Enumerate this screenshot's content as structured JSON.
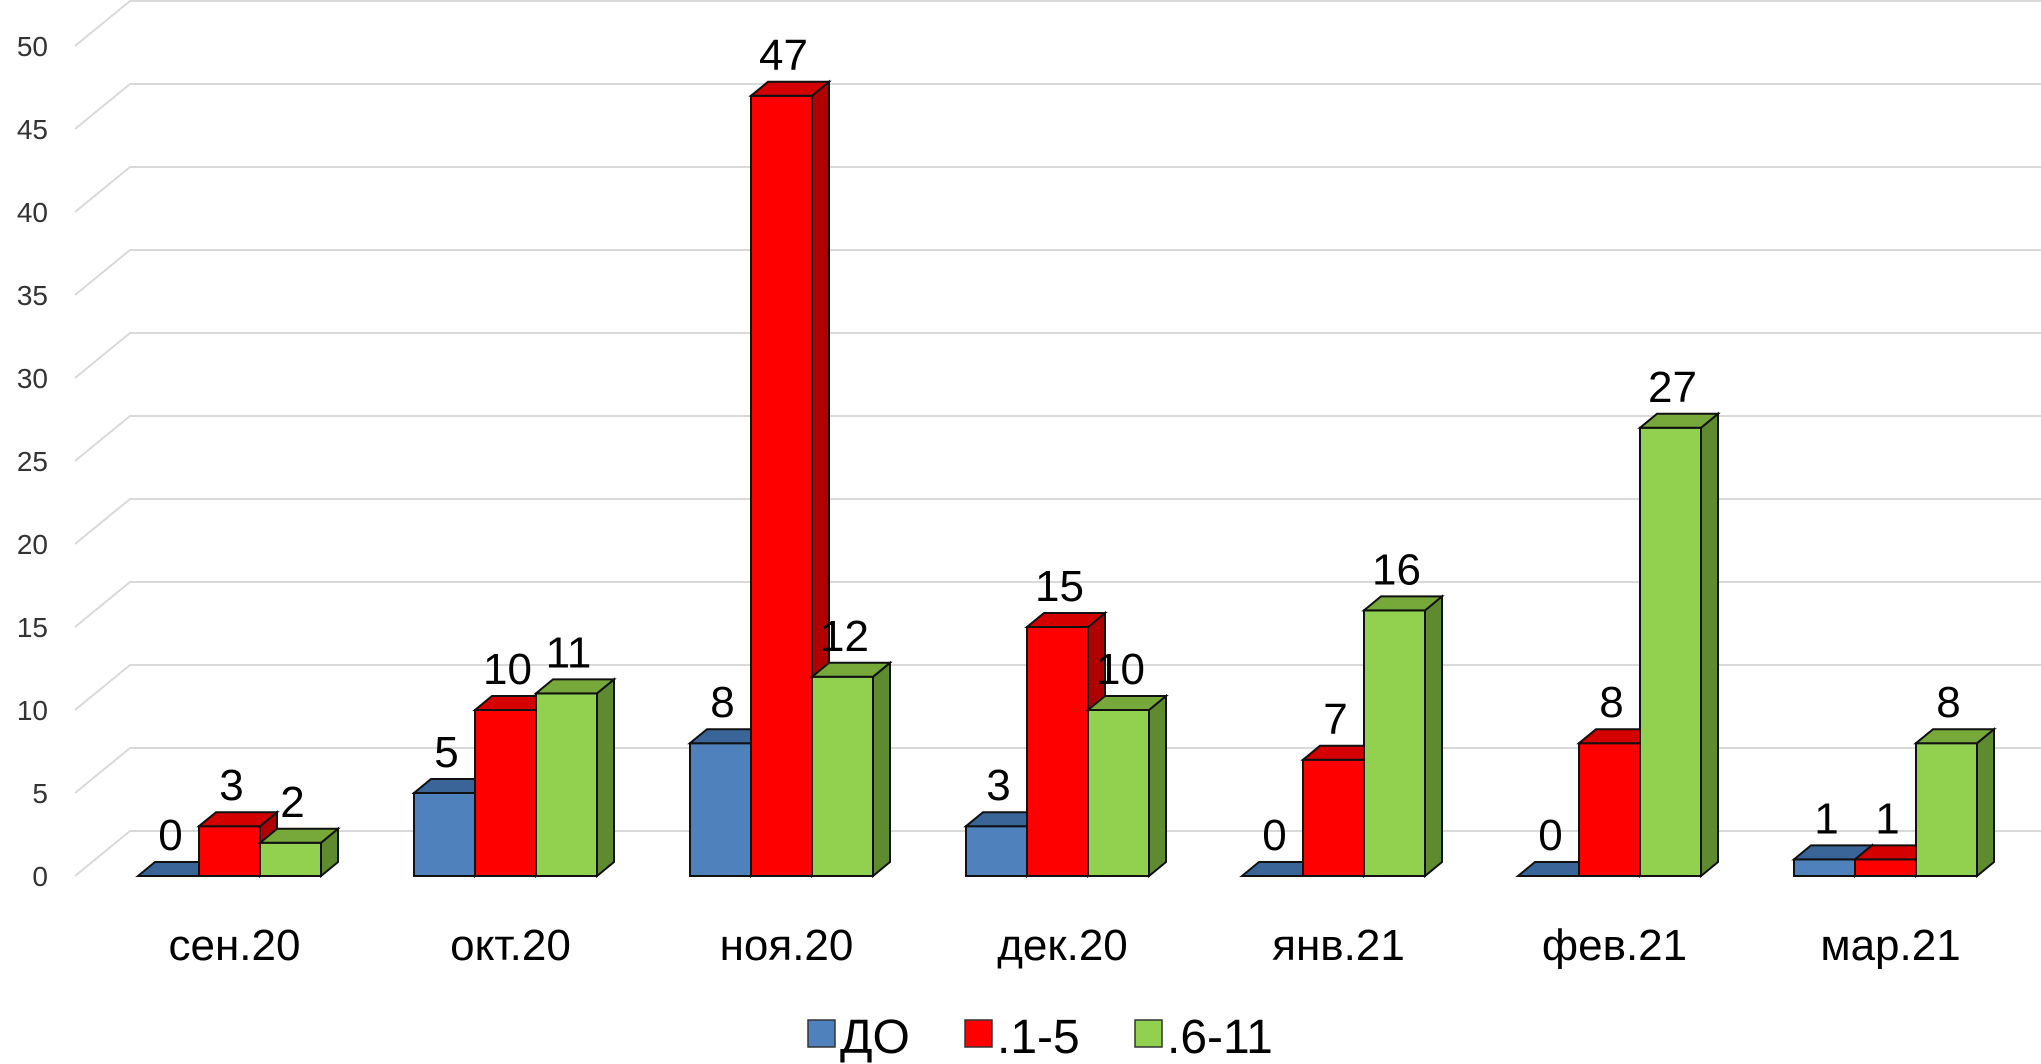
{
  "chart_data": {
    "type": "bar",
    "title": "",
    "xlabel": "",
    "ylabel": "",
    "categories": [
      "сен.20",
      "окт.20",
      "ноя.20",
      "дек.20",
      "янв.21",
      "фев.21",
      "мар.21"
    ],
    "ylim": [
      0,
      50
    ],
    "yticks": [
      0,
      5,
      10,
      15,
      20,
      25,
      30,
      35,
      40,
      45,
      50
    ],
    "grid": true,
    "legend_position": "bottom",
    "style": "3d-clustered-column",
    "series": [
      {
        "name": "ДО",
        "values": [
          0,
          5,
          8,
          3,
          0,
          0,
          1
        ],
        "color": "#4F81BD",
        "side_color": "#2C4D75",
        "top_color": "#3A6599"
      },
      {
        "name": ".1-5",
        "values": [
          3,
          10,
          47,
          15,
          7,
          8,
          1
        ],
        "color": "#FF0000",
        "side_color": "#B00000",
        "top_color": "#D40000"
      },
      {
        "name": ".6-11",
        "values": [
          2,
          11,
          12,
          10,
          16,
          27,
          8
        ],
        "color": "#92D050",
        "side_color": "#5E8A30",
        "top_color": "#77A83A"
      }
    ]
  }
}
